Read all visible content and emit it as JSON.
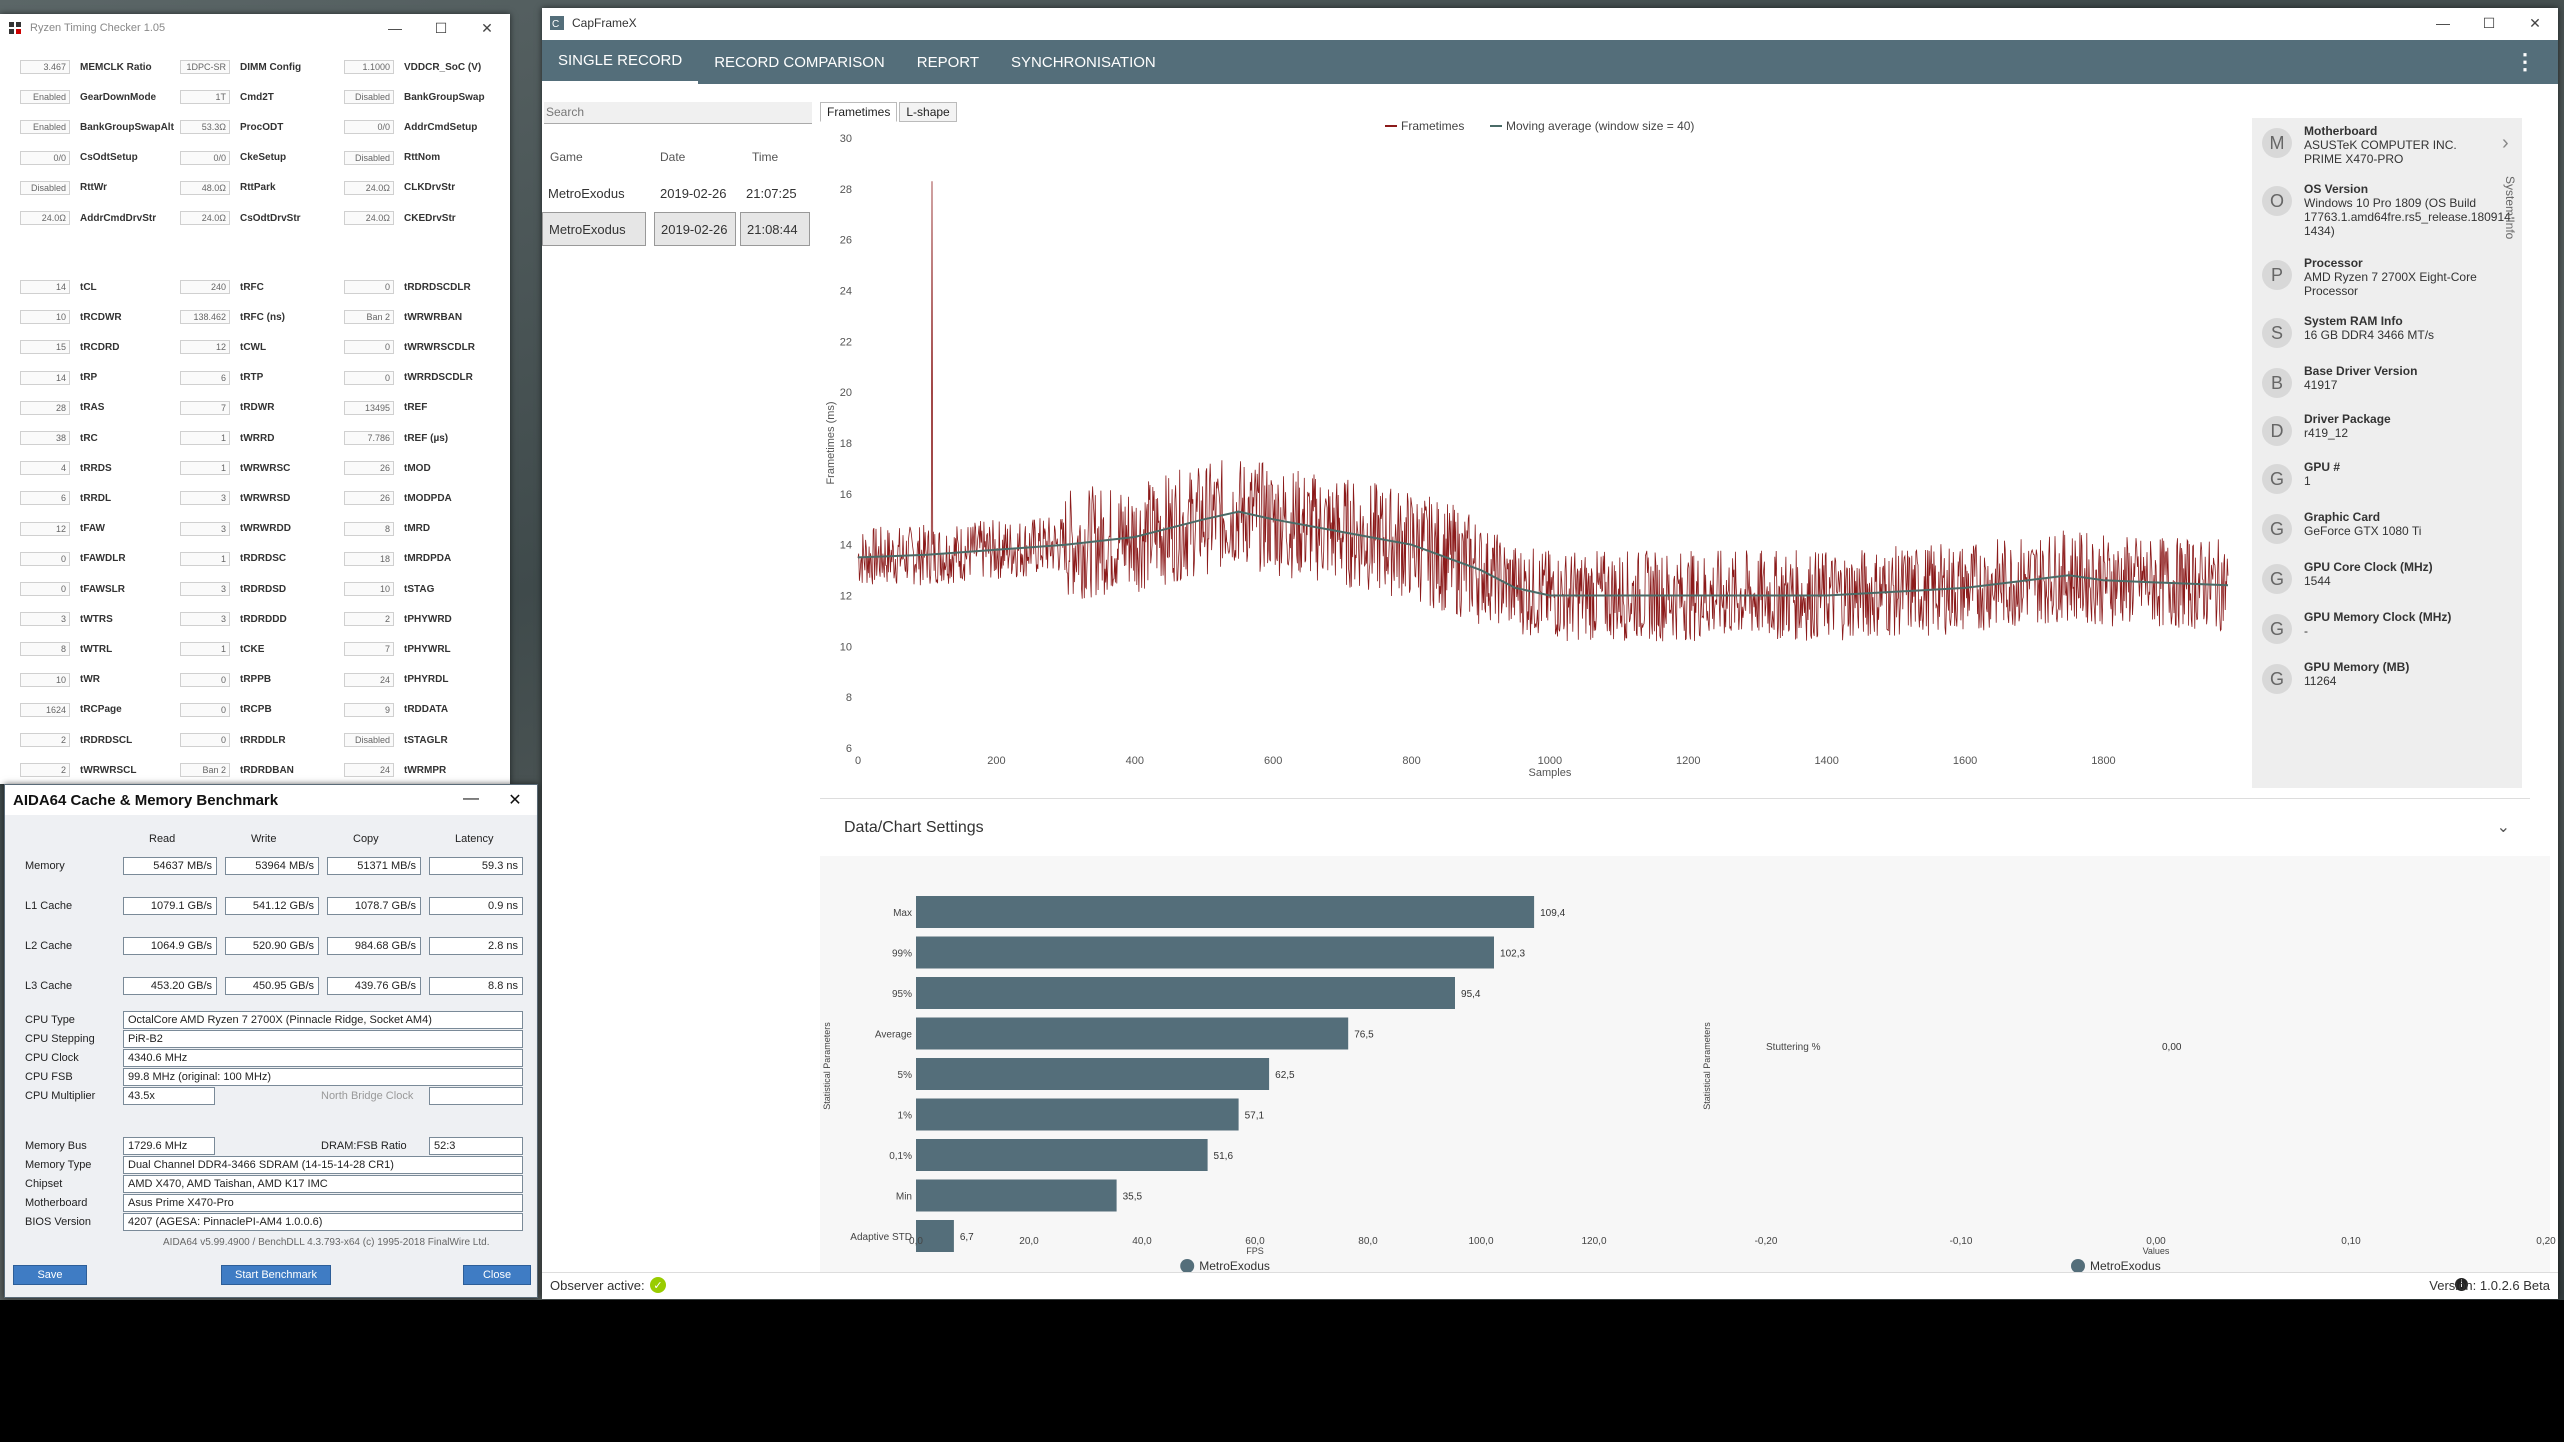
{
  "rtc": {
    "title": "Ryzen Timing Checker 1.05",
    "top_rows": [
      [
        {
          "v": "3.467",
          "l": "MEMCLK Ratio"
        },
        {
          "v": "1DPC-SR",
          "l": "DIMM Config"
        },
        {
          "v": "1.1000",
          "l": "VDDCR_SoC (V)"
        }
      ],
      [
        {
          "v": "Enabled",
          "l": "GearDownMode"
        },
        {
          "v": "1T",
          "l": "Cmd2T"
        },
        {
          "v": "Disabled",
          "l": "BankGroupSwap"
        }
      ],
      [
        {
          "v": "Enabled",
          "l": "BankGroupSwapAlt"
        },
        {
          "v": "53.3Ω",
          "l": "ProcODT"
        },
        {
          "v": "0/0",
          "l": "AddrCmdSetup"
        }
      ],
      [
        {
          "v": "0/0",
          "l": "CsOdtSetup"
        },
        {
          "v": "0/0",
          "l": "CkeSetup"
        },
        {
          "v": "Disabled",
          "l": "RttNom"
        }
      ],
      [
        {
          "v": "Disabled",
          "l": "RttWr"
        },
        {
          "v": "48.0Ω",
          "l": "RttPark"
        },
        {
          "v": "24.0Ω",
          "l": "CLKDrvStr"
        }
      ],
      [
        {
          "v": "24.0Ω",
          "l": "AddrCmdDrvStr"
        },
        {
          "v": "24.0Ω",
          "l": "CsOdtDrvStr"
        },
        {
          "v": "24.0Ω",
          "l": "CKEDrvStr"
        }
      ]
    ],
    "timing_rows": [
      [
        {
          "v": "14",
          "l": "tCL"
        },
        {
          "v": "240",
          "l": "tRFC"
        },
        {
          "v": "0",
          "l": "tRDRDSCDLR"
        }
      ],
      [
        {
          "v": "10",
          "l": "tRCDWR"
        },
        {
          "v": "138.462",
          "l": "tRFC (ns)"
        },
        {
          "v": "Ban 2",
          "l": "tWRWRBAN"
        }
      ],
      [
        {
          "v": "15",
          "l": "tRCDRD"
        },
        {
          "v": "12",
          "l": "tCWL"
        },
        {
          "v": "0",
          "l": "tWRWRSCDLR"
        }
      ],
      [
        {
          "v": "14",
          "l": "tRP"
        },
        {
          "v": "6",
          "l": "tRTP"
        },
        {
          "v": "0",
          "l": "tWRRDSCDLR"
        }
      ],
      [
        {
          "v": "28",
          "l": "tRAS"
        },
        {
          "v": "7",
          "l": "tRDWR"
        },
        {
          "v": "13495",
          "l": "tREF"
        }
      ],
      [
        {
          "v": "38",
          "l": "tRC"
        },
        {
          "v": "1",
          "l": "tWRRD"
        },
        {
          "v": "7.786",
          "l": "tREF (µs)"
        }
      ],
      [
        {
          "v": "4",
          "l": "tRRDS"
        },
        {
          "v": "1",
          "l": "tWRWRSC"
        },
        {
          "v": "26",
          "l": "tMOD"
        }
      ],
      [
        {
          "v": "6",
          "l": "tRRDL"
        },
        {
          "v": "3",
          "l": "tWRWRSD"
        },
        {
          "v": "26",
          "l": "tMODPDA"
        }
      ],
      [
        {
          "v": "12",
          "l": "tFAW"
        },
        {
          "v": "3",
          "l": "tWRWRDD"
        },
        {
          "v": "8",
          "l": "tMRD"
        }
      ],
      [
        {
          "v": "0",
          "l": "tFAWDLR"
        },
        {
          "v": "1",
          "l": "tRDRDSC"
        },
        {
          "v": "18",
          "l": "tMRDPDA"
        }
      ],
      [
        {
          "v": "0",
          "l": "tFAWSLR"
        },
        {
          "v": "3",
          "l": "tRDRDSD"
        },
        {
          "v": "10",
          "l": "tSTAG"
        }
      ],
      [
        {
          "v": "3",
          "l": "tWTRS"
        },
        {
          "v": "3",
          "l": "tRDRDDD"
        },
        {
          "v": "2",
          "l": "tPHYWRD"
        }
      ],
      [
        {
          "v": "8",
          "l": "tWTRL"
        },
        {
          "v": "1",
          "l": "tCKE"
        },
        {
          "v": "7",
          "l": "tPHYWRL"
        }
      ],
      [
        {
          "v": "10",
          "l": "tWR"
        },
        {
          "v": "0",
          "l": "tRPPB"
        },
        {
          "v": "24",
          "l": "tPHYRDL"
        }
      ],
      [
        {
          "v": "1624",
          "l": "tRCPage"
        },
        {
          "v": "0",
          "l": "tRCPB"
        },
        {
          "v": "9",
          "l": "tRDDATA"
        }
      ],
      [
        {
          "v": "2",
          "l": "tRDRDSCL"
        },
        {
          "v": "0",
          "l": "tRRDDLR"
        },
        {
          "v": "Disabled",
          "l": "tSTAGLR"
        }
      ],
      [
        {
          "v": "2",
          "l": "tWRWRSCL"
        },
        {
          "v": "Ban 2",
          "l": "tRDRDBAN"
        },
        {
          "v": "24",
          "l": "tWRMPR"
        }
      ]
    ]
  },
  "aida": {
    "title": "AIDA64 Cache & Memory Benchmark",
    "columns": [
      "Read",
      "Write",
      "Copy",
      "Latency"
    ],
    "bench_rows": [
      {
        "label": "Memory",
        "vals": [
          "54637 MB/s",
          "53964 MB/s",
          "51371 MB/s",
          "59.3 ns"
        ]
      },
      {
        "label": "L1 Cache",
        "vals": [
          "1079.1 GB/s",
          "541.12 GB/s",
          "1078.7 GB/s",
          "0.9 ns"
        ]
      },
      {
        "label": "L2 Cache",
        "vals": [
          "1064.9 GB/s",
          "520.90 GB/s",
          "984.68 GB/s",
          "2.8 ns"
        ]
      },
      {
        "label": "L3 Cache",
        "vals": [
          "453.20 GB/s",
          "450.95 GB/s",
          "439.76 GB/s",
          "8.8 ns"
        ]
      }
    ],
    "cpu_type_label": "CPU Type",
    "cpu_type": "OctalCore AMD Ryzen 7 2700X  (Pinnacle Ridge, Socket AM4)",
    "cpu_stepping_label": "CPU Stepping",
    "cpu_stepping": "PiR-B2",
    "cpu_clock_label": "CPU Clock",
    "cpu_clock": "4340.6 MHz",
    "cpu_fsb_label": "CPU FSB",
    "cpu_fsb": "99.8 MHz  (original: 100 MHz)",
    "cpu_mult_label": "CPU Multiplier",
    "cpu_mult": "43.5x",
    "nb_clock_label": "North Bridge Clock",
    "mem_bus_label": "Memory Bus",
    "mem_bus": "1729.6 MHz",
    "dram_fsb_label": "DRAM:FSB Ratio",
    "dram_fsb": "52:3",
    "mem_type_label": "Memory Type",
    "mem_type": "Dual Channel DDR4-3466 SDRAM  (14-15-14-28 CR1)",
    "chipset_label": "Chipset",
    "chipset": "AMD X470, AMD Taishan, AMD K17 IMC",
    "mobo_label": "Motherboard",
    "mobo": "Asus Prime X470-Pro",
    "bios_label": "BIOS Version",
    "bios": "4207  (AGESA: PinnaclePI-AM4 1.0.0.6)",
    "footer": "AIDA64 v5.99.4900 / BenchDLL 4.3.793-x64  (c) 1995-2018 FinalWire Ltd.",
    "save": "Save",
    "start": "Start Benchmark",
    "close": "Close"
  },
  "cfx": {
    "title": "CapFrameX",
    "tabs": [
      "SINGLE RECORD",
      "RECORD COMPARISON",
      "REPORT",
      "SYNCHRONISATION"
    ],
    "search_placeholder": "Search",
    "rec_cols": [
      "Game",
      "Date",
      "Time"
    ],
    "records": [
      {
        "game": "MetroExodus",
        "date": "2019-02-26",
        "time": "21:07:25",
        "selected": false
      },
      {
        "game": "MetroExodus",
        "date": "2019-02-26",
        "time": "21:08:44",
        "selected": true
      }
    ],
    "subtabs": [
      "Frametimes",
      "L-shape"
    ],
    "sysinfo_label": "System Info",
    "sysinfo": [
      {
        "letter": "M",
        "title": "Motherboard",
        "value": "ASUSTeK COMPUTER INC. PRIME X470-PRO"
      },
      {
        "letter": "O",
        "title": "OS Version",
        "value": "Windows 10 Pro 1809 (OS Build 17763.1.amd64fre.rs5_release.180914-1434)"
      },
      {
        "letter": "P",
        "title": "Processor",
        "value": "AMD Ryzen 7 2700X Eight-Core Processor"
      },
      {
        "letter": "S",
        "title": "System RAM Info",
        "value": "16 GB DDR4 3466 MT/s"
      },
      {
        "letter": "B",
        "title": "Base Driver Version",
        "value": "41917"
      },
      {
        "letter": "D",
        "title": "Driver Package",
        "value": "r419_12"
      },
      {
        "letter": "G",
        "title": "GPU #",
        "value": "1"
      },
      {
        "letter": "G",
        "title": "Graphic Card",
        "value": "GeForce GTX 1080 Ti"
      },
      {
        "letter": "G",
        "title": "GPU Core Clock (MHz)",
        "value": "1544"
      },
      {
        "letter": "G",
        "title": "GPU Memory Clock (MHz)",
        "value": "-"
      },
      {
        "letter": "G",
        "title": "GPU Memory (MB)",
        "value": "11264"
      }
    ],
    "settings_label": "Data/Chart Settings",
    "observer": "Observer active:",
    "version": "Version: 1.0.2.6 Beta"
  },
  "chart_data": [
    {
      "type": "line",
      "title": "",
      "legend": [
        "Frametimes",
        "Moving average (window size = 40)"
      ],
      "xlabel": "Samples",
      "ylabel": "Frametimes (ms)",
      "xlim": [
        0,
        1980
      ],
      "ylim": [
        6,
        30
      ],
      "xticks": [
        0,
        200,
        400,
        600,
        800,
        1000,
        1200,
        1400,
        1600,
        1800
      ],
      "yticks": [
        6,
        8,
        10,
        12,
        14,
        16,
        18,
        20,
        22,
        24,
        26,
        28,
        30
      ],
      "series": [
        {
          "name": "Frametimes",
          "color": "#8b1a1a",
          "profile": [
            [
              0,
              13.5
            ],
            [
              100,
              13.6
            ],
            [
              200,
              13.8
            ],
            [
              300,
              14.0
            ],
            [
              400,
              14.3
            ],
            [
              500,
              15.0
            ],
            [
              550,
              15.3
            ],
            [
              600,
              15.0
            ],
            [
              700,
              14.5
            ],
            [
              800,
              14.0
            ],
            [
              900,
              13.0
            ],
            [
              950,
              12.3
            ],
            [
              1000,
              12.0
            ],
            [
              1200,
              12.0
            ],
            [
              1400,
              12.0
            ],
            [
              1600,
              12.3
            ],
            [
              1750,
              12.8
            ],
            [
              1800,
              12.6
            ],
            [
              1980,
              12.4
            ]
          ],
          "spike": {
            "x": 107,
            "y": 28.3
          }
        },
        {
          "name": "Moving average (window size = 40)",
          "color": "#4a6b67",
          "points": [
            [
              0,
              13.5
            ],
            [
              100,
              13.6
            ],
            [
              200,
              13.8
            ],
            [
              300,
              14.0
            ],
            [
              400,
              14.3
            ],
            [
              500,
              15.0
            ],
            [
              550,
              15.3
            ],
            [
              600,
              15.0
            ],
            [
              700,
              14.5
            ],
            [
              800,
              14.0
            ],
            [
              900,
              13.0
            ],
            [
              950,
              12.3
            ],
            [
              1000,
              12.0
            ],
            [
              1200,
              12.0
            ],
            [
              1400,
              12.0
            ],
            [
              1600,
              12.3
            ],
            [
              1750,
              12.8
            ],
            [
              1800,
              12.6
            ],
            [
              1980,
              12.4
            ]
          ]
        }
      ]
    },
    {
      "type": "bar",
      "orientation": "horizontal",
      "categories": [
        "Max",
        "99%",
        "95%",
        "Average",
        "5%",
        "1%",
        "0,1%",
        "Min",
        "Adaptive STD"
      ],
      "values": [
        109.4,
        102.3,
        95.4,
        76.5,
        62.5,
        57.1,
        51.6,
        35.5,
        6.7
      ],
      "value_labels": [
        "109,4",
        "102,3",
        "95,4",
        "76,5",
        "62,5",
        "57,1",
        "51,6",
        "35,5",
        "6,7"
      ],
      "xlabel": "FPS",
      "ylabel": "Statistical Parameters",
      "xlim": [
        0,
        120
      ],
      "xticks": [
        "0,0",
        "20,0",
        "40,0",
        "60,0",
        "80,0",
        "100,0",
        "120,0"
      ],
      "legend": [
        "MetroExodus"
      ]
    },
    {
      "type": "bar",
      "orientation": "horizontal",
      "categories": [
        "Stuttering %"
      ],
      "values": [
        0.0
      ],
      "value_labels": [
        "0,00"
      ],
      "xlabel": "Values",
      "ylabel": "Statistical Parameters",
      "xlim": [
        -0.2,
        0.2
      ],
      "xticks": [
        "-0,20",
        "-0,10",
        "0,00",
        "0,10",
        "0,20"
      ],
      "legend": [
        "MetroExodus"
      ]
    }
  ]
}
